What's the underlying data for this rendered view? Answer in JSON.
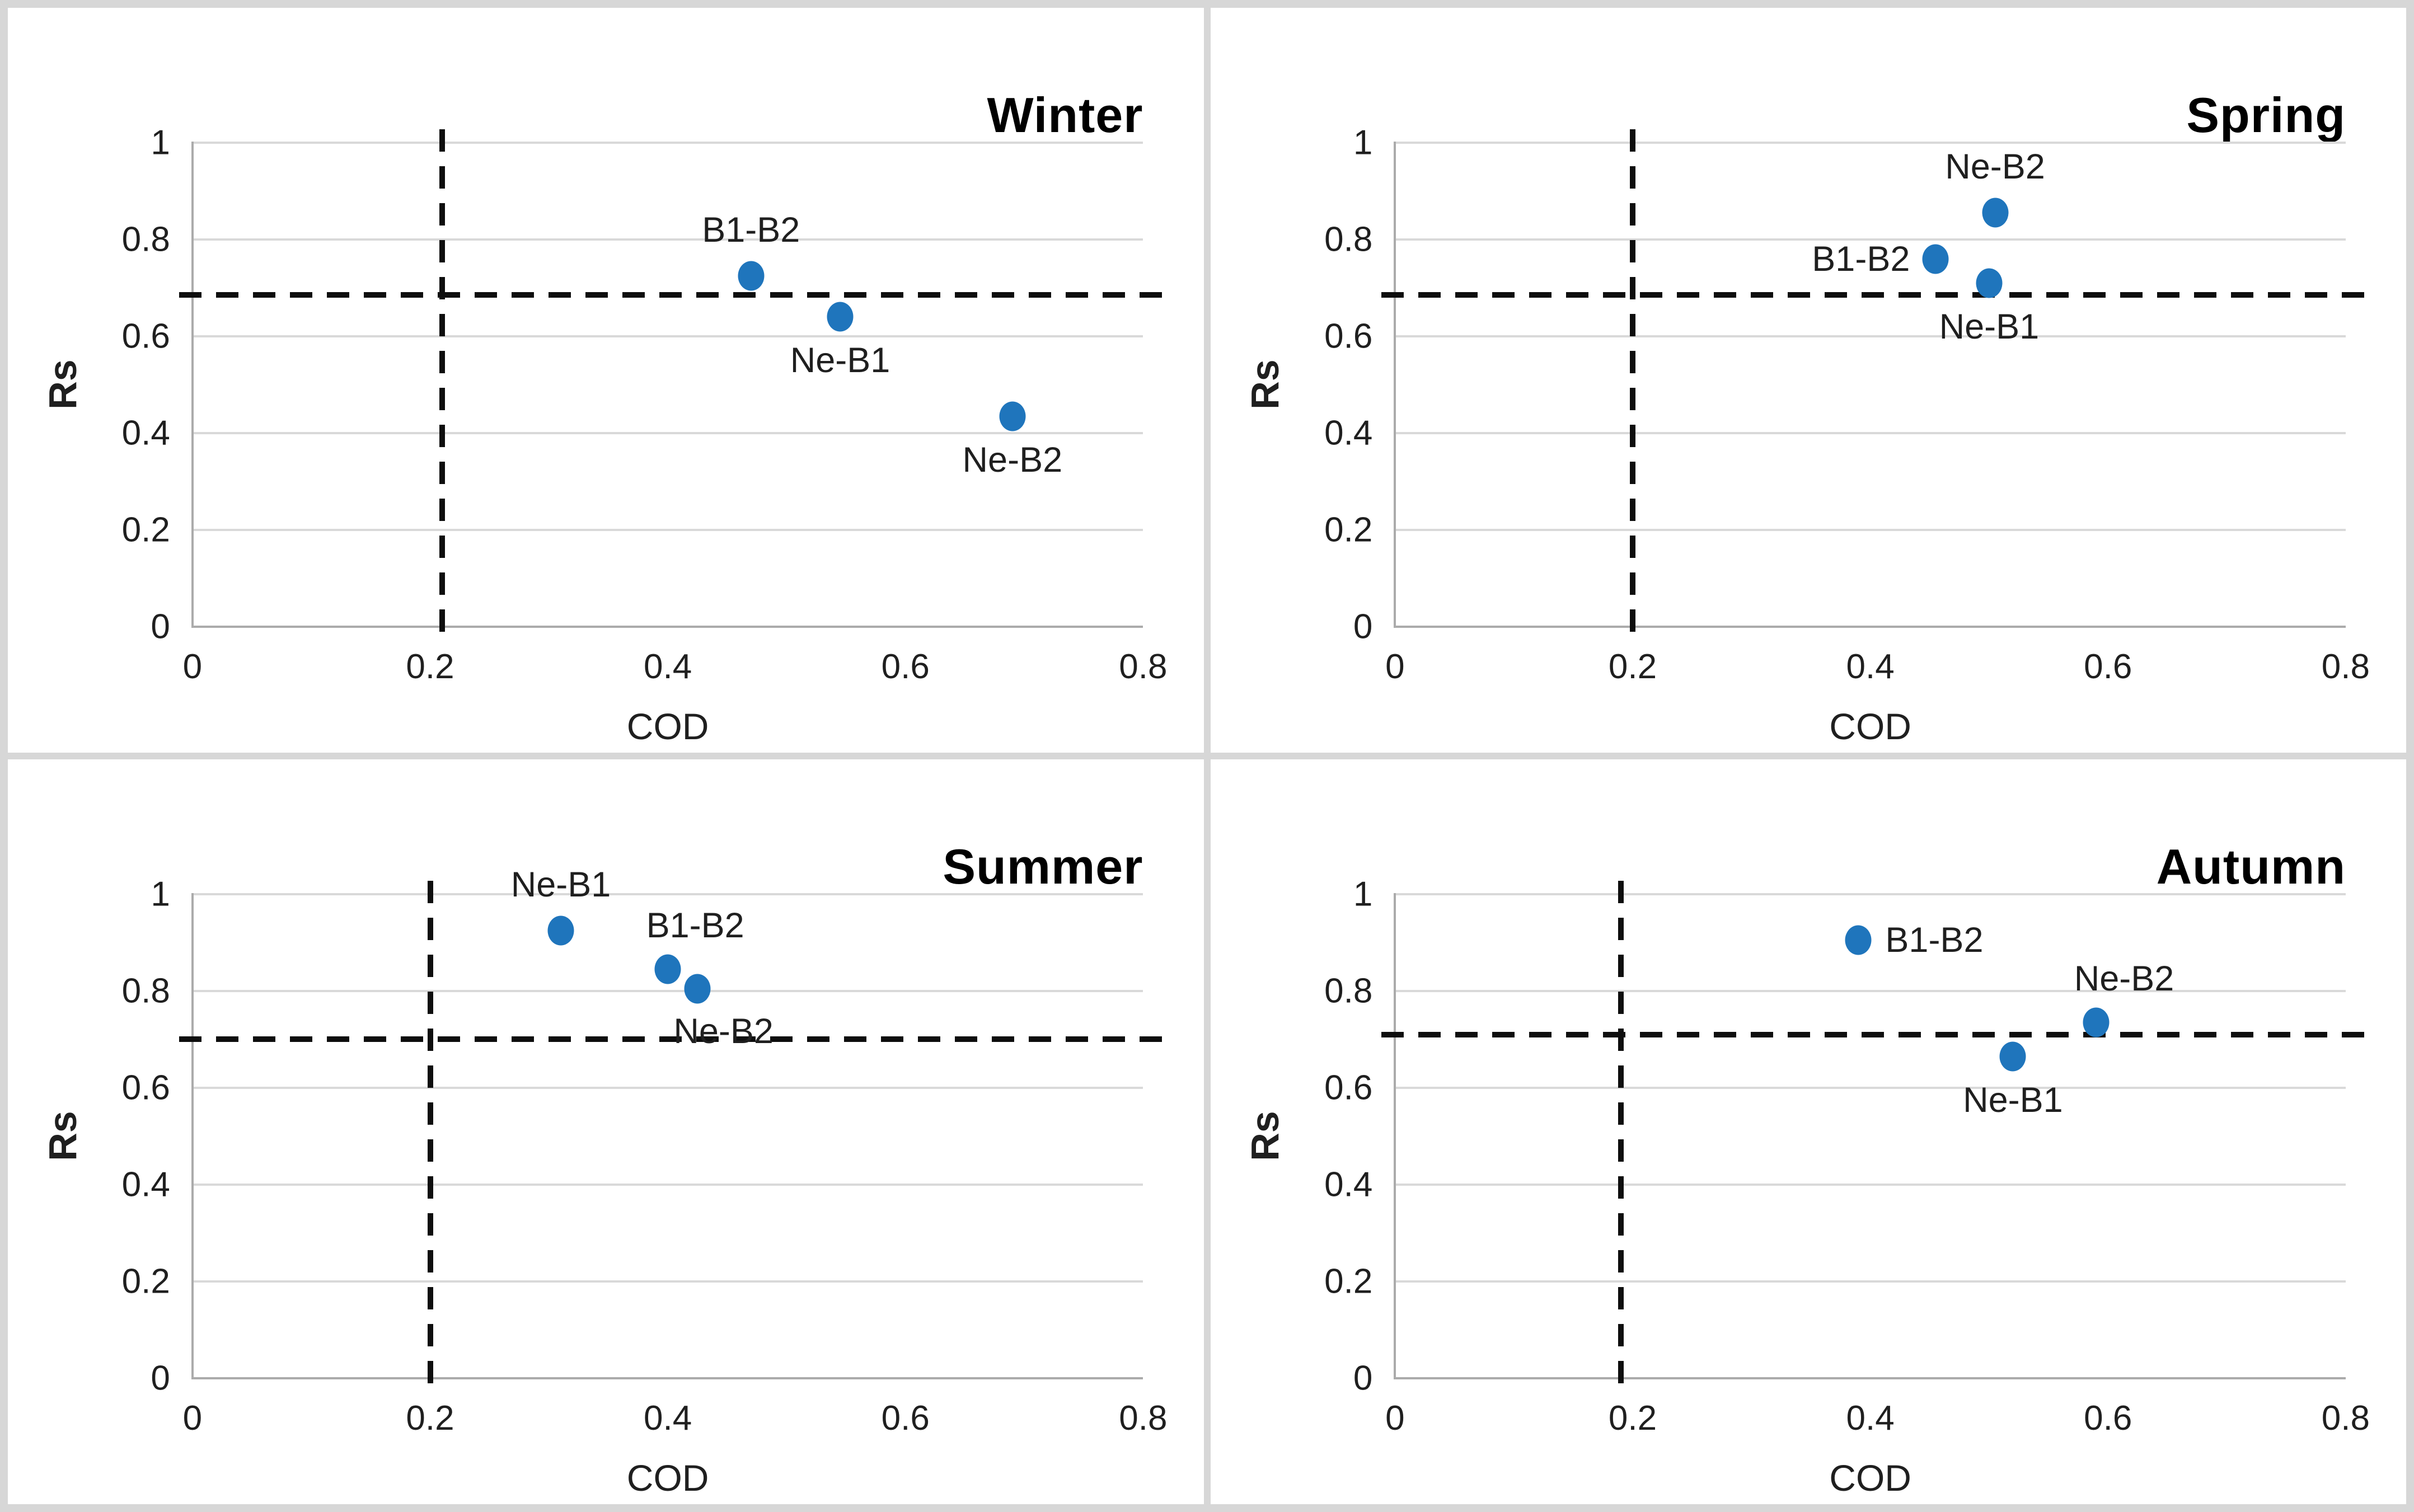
{
  "colors": {
    "point": "#1F75BC",
    "gridline": "#D9D9D9",
    "axis_line": "#ABABAB",
    "threshold_dash": "#0E0E0E",
    "text": "#1F1F1F",
    "title": "#000000",
    "frame": "#D7D7D7",
    "panel_background": "#FFFFFF"
  },
  "chart_data": [
    {
      "type": "scatter",
      "title": "Winter",
      "xlabel": "COD",
      "ylabel": "Rs",
      "xlim": [
        0,
        0.8
      ],
      "ylim": [
        0,
        1
      ],
      "xtick_values": [
        0,
        0.2,
        0.4,
        0.6,
        0.8
      ],
      "xtick_labels": [
        "0",
        "0.2",
        "0.4",
        "0.6",
        "0.8"
      ],
      "ytick_values": [
        0,
        0.2,
        0.4,
        0.6,
        0.8,
        1
      ],
      "ytick_labels": [
        "0",
        "0.2",
        "0.4",
        "0.6",
        "0.8",
        "1"
      ],
      "grid": "horizontal",
      "legend": "none",
      "threshold_vline_x": 0.21,
      "threshold_hline_y": 0.685,
      "points": [
        {
          "label": "B1-B2",
          "x": 0.47,
          "y": 0.725,
          "label_pos": "above"
        },
        {
          "label": "Ne-B1",
          "x": 0.545,
          "y": 0.64,
          "label_pos": "below"
        },
        {
          "label": "Ne-B2",
          "x": 0.69,
          "y": 0.435,
          "label_pos": "below"
        }
      ]
    },
    {
      "type": "scatter",
      "title": "Spring",
      "xlabel": "COD",
      "ylabel": "Rs",
      "xlim": [
        0,
        0.8
      ],
      "ylim": [
        0,
        1
      ],
      "xtick_values": [
        0,
        0.2,
        0.4,
        0.6,
        0.8
      ],
      "xtick_labels": [
        "0",
        "0.2",
        "0.4",
        "0.6",
        "0.8"
      ],
      "ytick_values": [
        0,
        0.2,
        0.4,
        0.6,
        0.8,
        1
      ],
      "ytick_labels": [
        "0",
        "0.2",
        "0.4",
        "0.6",
        "0.8",
        "1"
      ],
      "grid": "horizontal",
      "legend": "none",
      "threshold_vline_x": 0.2,
      "threshold_hline_y": 0.685,
      "points": [
        {
          "label": "Ne-B2",
          "x": 0.505,
          "y": 0.855,
          "label_pos": "above"
        },
        {
          "label": "B1-B2",
          "x": 0.455,
          "y": 0.76,
          "label_pos": "left"
        },
        {
          "label": "Ne-B1",
          "x": 0.5,
          "y": 0.71,
          "label_pos": "below"
        }
      ]
    },
    {
      "type": "scatter",
      "title": "Summer",
      "xlabel": "COD",
      "ylabel": "Rs",
      "xlim": [
        0,
        0.8
      ],
      "ylim": [
        0,
        1
      ],
      "xtick_values": [
        0,
        0.2,
        0.4,
        0.6,
        0.8
      ],
      "xtick_labels": [
        "0",
        "0.2",
        "0.4",
        "0.6",
        "0.8"
      ],
      "ytick_values": [
        0,
        0.2,
        0.4,
        0.6,
        0.8,
        1
      ],
      "ytick_labels": [
        "0",
        "0.2",
        "0.4",
        "0.6",
        "0.8",
        "1"
      ],
      "grid": "horizontal",
      "legend": "none",
      "threshold_vline_x": 0.2,
      "threshold_hline_y": 0.7,
      "points": [
        {
          "label": "Ne-B1",
          "x": 0.31,
          "y": 0.925,
          "label_pos": "above"
        },
        {
          "label": "B1-B2",
          "x": 0.4,
          "y": 0.845,
          "label_pos": "above-right"
        },
        {
          "label": "Ne-B2",
          "x": 0.425,
          "y": 0.805,
          "label_pos": "below-right"
        }
      ]
    },
    {
      "type": "scatter",
      "title": "Autumn",
      "xlabel": "COD",
      "ylabel": "Rs",
      "xlim": [
        0,
        0.8
      ],
      "ylim": [
        0,
        1
      ],
      "xtick_values": [
        0,
        0.2,
        0.4,
        0.6,
        0.8
      ],
      "xtick_labels": [
        "0",
        "0.2",
        "0.4",
        "0.6",
        "0.8"
      ],
      "ytick_values": [
        0,
        0.2,
        0.4,
        0.6,
        0.8,
        1
      ],
      "ytick_labels": [
        "0",
        "0.2",
        "0.4",
        "0.6",
        "0.8",
        "1"
      ],
      "grid": "horizontal",
      "legend": "none",
      "threshold_vline_x": 0.19,
      "threshold_hline_y": 0.71,
      "points": [
        {
          "label": "B1-B2",
          "x": 0.39,
          "y": 0.905,
          "label_pos": "right"
        },
        {
          "label": "Ne-B2",
          "x": 0.59,
          "y": 0.735,
          "label_pos": "above-right"
        },
        {
          "label": "Ne-B1",
          "x": 0.52,
          "y": 0.665,
          "label_pos": "below"
        }
      ]
    }
  ]
}
